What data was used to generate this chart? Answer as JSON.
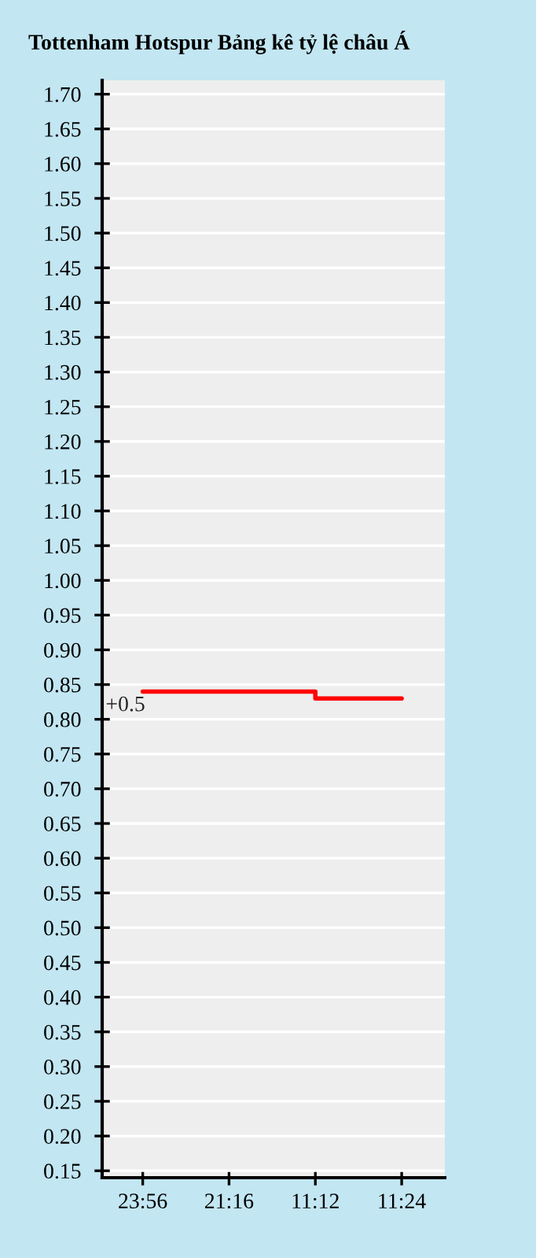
{
  "chart_data": {
    "type": "step",
    "title": "Tottenham Hotspur Bảng kê tỷ lệ châu Á",
    "categories": [
      "23:56",
      "21:16",
      "11:12",
      "11:24"
    ],
    "series": [
      {
        "color": "#ff0000",
        "values": [
          0.84,
          0.84,
          0.83,
          0.83
        ]
      }
    ],
    "annotations": [
      {
        "text": "+0.5",
        "x": "23:56",
        "y": 0.84
      }
    ],
    "ylim": [
      0.14,
      1.72
    ],
    "yticks": [
      {
        "value": 0.15,
        "label": "0.15"
      },
      {
        "value": 0.2,
        "label": "0.20"
      },
      {
        "value": 0.25,
        "label": "0.25"
      },
      {
        "value": 0.3,
        "label": "0.30"
      },
      {
        "value": 0.35,
        "label": "0.35"
      },
      {
        "value": 0.4,
        "label": "0.40"
      },
      {
        "value": 0.45,
        "label": "0.45"
      },
      {
        "value": 0.5,
        "label": "0.50"
      },
      {
        "value": 0.55,
        "label": "0.55"
      },
      {
        "value": 0.6,
        "label": "0.60"
      },
      {
        "value": 0.65,
        "label": "0.65"
      },
      {
        "value": 0.7,
        "label": "0.70"
      },
      {
        "value": 0.75,
        "label": "0.75"
      },
      {
        "value": 0.8,
        "label": "0.80"
      },
      {
        "value": 0.85,
        "label": "0.85"
      },
      {
        "value": 0.9,
        "label": "0.90"
      },
      {
        "value": 0.95,
        "label": "0.95"
      },
      {
        "value": 1.0,
        "label": "1.00"
      },
      {
        "value": 1.05,
        "label": "1.05"
      },
      {
        "value": 1.1,
        "label": "1.10"
      },
      {
        "value": 1.15,
        "label": "1.15"
      },
      {
        "value": 1.2,
        "label": "1.20"
      },
      {
        "value": 1.25,
        "label": "1.25"
      },
      {
        "value": 1.3,
        "label": "1.30"
      },
      {
        "value": 1.35,
        "label": "1.35"
      },
      {
        "value": 1.4,
        "label": "1.40"
      },
      {
        "value": 1.45,
        "label": "1.45"
      },
      {
        "value": 1.5,
        "label": "1.50"
      },
      {
        "value": 1.55,
        "label": "1.55"
      },
      {
        "value": 1.6,
        "label": "1.60"
      },
      {
        "value": 1.65,
        "label": "1.65"
      },
      {
        "value": 1.7,
        "label": "1.70"
      }
    ],
    "grid": "y"
  }
}
